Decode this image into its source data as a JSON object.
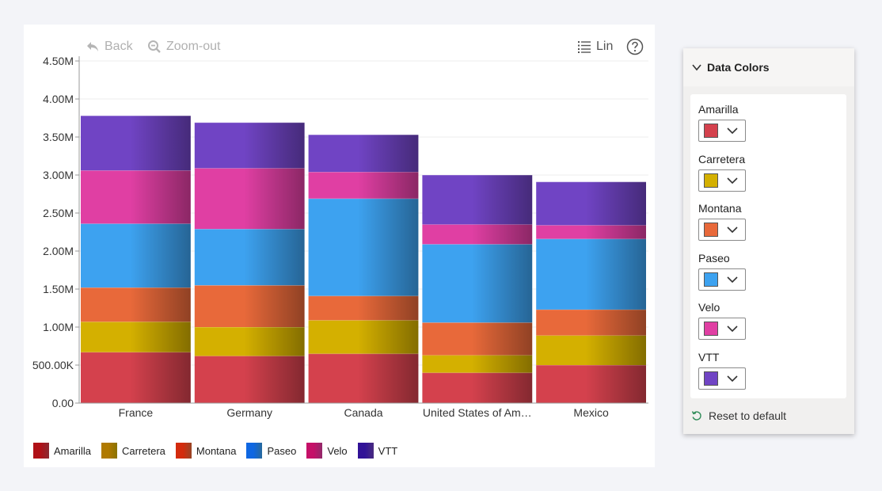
{
  "toolbar": {
    "back_label": "Back",
    "zoom_label": "Zoom-out",
    "lin_label": "Lin"
  },
  "chart_data": {
    "type": "bar",
    "stacked": true,
    "categories": [
      "France",
      "Germany",
      "Canada",
      "United States of Am…",
      "Mexico"
    ],
    "y_ticks": [
      "0.00",
      "500.00K",
      "1.00M",
      "1.50M",
      "2.00M",
      "2.50M",
      "3.00M",
      "3.50M",
      "4.00M",
      "4.50M"
    ],
    "ylim": [
      0,
      4500000
    ],
    "grid": true,
    "legend_position": "bottom-left",
    "series": [
      {
        "name": "Amarilla",
        "color": "#d4414d",
        "values": [
          670000,
          620000,
          650000,
          400000,
          500000
        ]
      },
      {
        "name": "Carretera",
        "color": "#d4b000",
        "values": [
          400000,
          380000,
          440000,
          230000,
          390000
        ]
      },
      {
        "name": "Montana",
        "color": "#e8693a",
        "values": [
          450000,
          550000,
          320000,
          430000,
          340000
        ]
      },
      {
        "name": "Paseo",
        "color": "#3da2f0",
        "values": [
          840000,
          740000,
          1280000,
          1030000,
          930000
        ]
      },
      {
        "name": "Velo",
        "color": "#e03fa3",
        "values": [
          700000,
          800000,
          350000,
          260000,
          180000
        ]
      },
      {
        "name": "VTT",
        "color": "#7044c4",
        "values": [
          720000,
          600000,
          490000,
          650000,
          570000
        ]
      }
    ]
  },
  "panel": {
    "title": "Data Colors",
    "reset_label": "Reset to default",
    "items": [
      {
        "label": "Amarilla",
        "color": "#d4414d"
      },
      {
        "label": "Carretera",
        "color": "#d4b000"
      },
      {
        "label": "Montana",
        "color": "#e8693a"
      },
      {
        "label": "Paseo",
        "color": "#3da2f0"
      },
      {
        "label": "Velo",
        "color": "#e03fa3"
      },
      {
        "label": "VTT",
        "color": "#7044c4"
      }
    ]
  }
}
